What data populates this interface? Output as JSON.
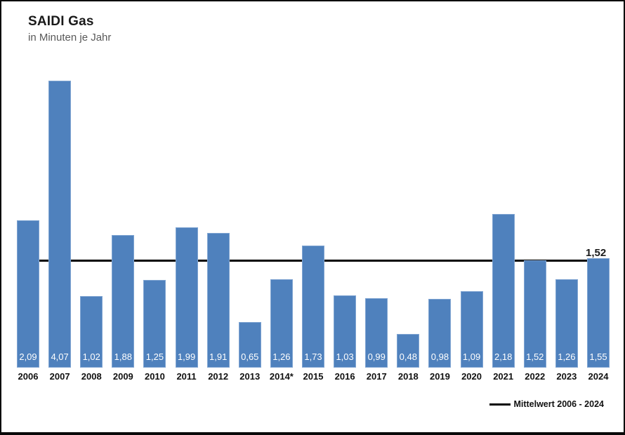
{
  "header": {
    "title": "SAIDI Gas",
    "subtitle": "in Minuten je Jahr"
  },
  "chart_data": {
    "type": "bar",
    "title": "SAIDI Gas",
    "subtitle": "in Minuten je Jahr",
    "categories": [
      "2006",
      "2007",
      "2008",
      "2009",
      "2010",
      "2011",
      "2012",
      "2013",
      "2014*",
      "2015",
      "2016",
      "2017",
      "2018",
      "2019",
      "2020",
      "2021",
      "2022",
      "2023",
      "2024"
    ],
    "values": [
      2.09,
      4.07,
      1.02,
      1.88,
      1.25,
      1.99,
      1.91,
      0.65,
      1.26,
      1.73,
      1.03,
      0.99,
      0.48,
      0.98,
      1.09,
      2.18,
      1.52,
      1.26,
      1.55
    ],
    "value_labels": [
      "2,09",
      "4,07",
      "1,02",
      "1,88",
      "1,25",
      "1,99",
      "1,91",
      "0,65",
      "1,26",
      "1,73",
      "1,03",
      "0,99",
      "0,48",
      "0,98",
      "1,09",
      "2,18",
      "1,52",
      "1,26",
      "1,55"
    ],
    "mean_line": {
      "value": 1.52,
      "label": "1,52",
      "legend_label": "Mittelwert 2006 - 2024"
    },
    "ylim": [
      0,
      4.3
    ],
    "grid": false,
    "legend_position": "bottom-right",
    "bar_color": "#4F81BD",
    "line_color": "#000000",
    "value_label_color": "#ffffff"
  }
}
